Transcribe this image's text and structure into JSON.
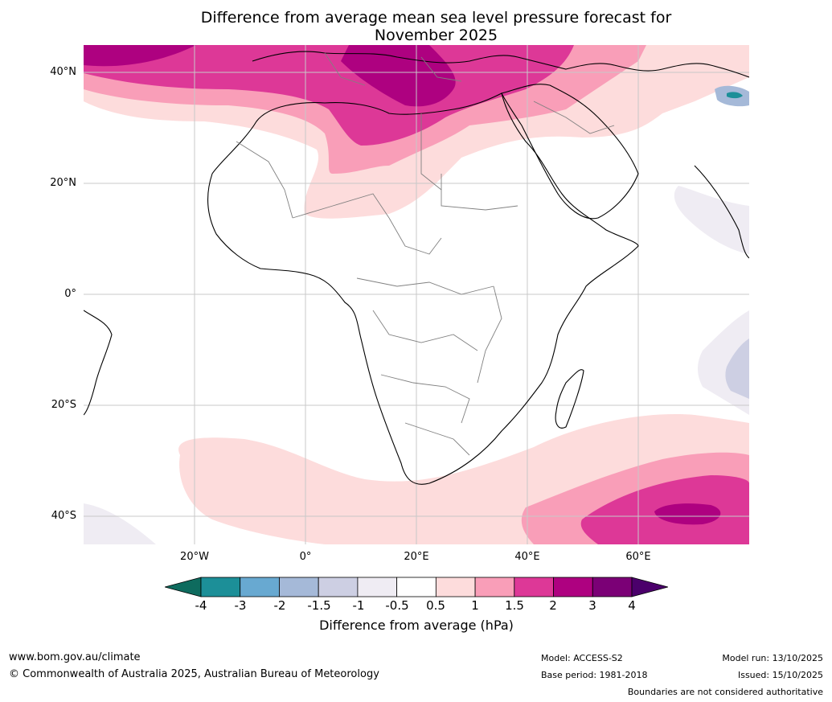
{
  "title": {
    "line1": "Difference from average mean sea level pressure forecast for",
    "line2": "November 2025"
  },
  "map": {
    "lat_labels": [
      "40°N",
      "20°N",
      "0°",
      "20°S",
      "40°S"
    ],
    "lon_labels": [
      "20°W",
      "0°",
      "20°E",
      "40°E",
      "60°E"
    ],
    "extent": {
      "lon_min": -40,
      "lon_max": 80,
      "lat_min": -45,
      "lat_max": 45
    }
  },
  "colorbar": {
    "ticks": [
      "-4",
      "-3",
      "-2",
      "-1.5",
      "-1",
      "-0.5",
      "0.5",
      "1",
      "1.5",
      "2",
      "3",
      "4"
    ],
    "colors": [
      "#0e6b5e",
      "#1c8f98",
      "#68a9d1",
      "#a5b9d8",
      "#cdcfe3",
      "#efecf3",
      "#ffffff",
      "#fddcdc",
      "#f99eb8",
      "#dd3897",
      "#ae0180",
      "#7b0076",
      "#4b006b"
    ],
    "label": "Difference from average (hPa)"
  },
  "footer": {
    "url": "www.bom.gov.au/climate",
    "copyright": "© Commonwealth of Australia 2025, Australian Bureau of Meteorology",
    "model": "Model: ACCESS-S2",
    "base_period": "Base period: 1981-2018",
    "model_run": "Model run: 13/10/2025",
    "issued": "Issued: 15/10/2025",
    "disclaimer": "Boundaries are not considered authoritative"
  }
}
